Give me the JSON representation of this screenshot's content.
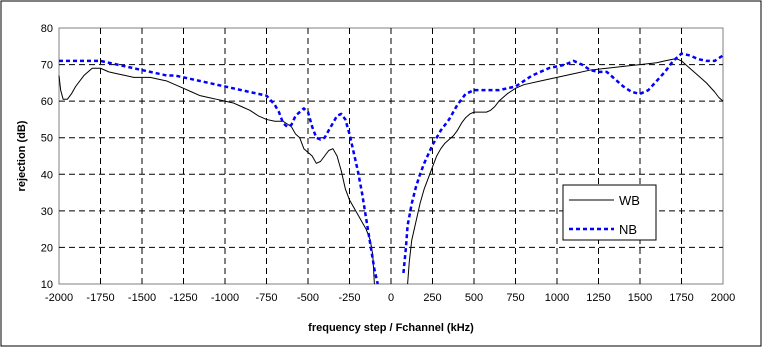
{
  "chart_data": {
    "type": "line",
    "title": "",
    "xlabel": "frequency step / Fchannel (kHz)",
    "ylabel": "rejection (dB)",
    "xlim": [
      -2000,
      2000
    ],
    "ylim": [
      10,
      80
    ],
    "xticks": [
      -2000,
      -1750,
      -1500,
      -1250,
      -1000,
      -750,
      -500,
      -250,
      0,
      250,
      500,
      750,
      1000,
      1250,
      1500,
      1750,
      2000
    ],
    "yticks": [
      10,
      20,
      30,
      40,
      50,
      60,
      70,
      80
    ],
    "grid": true,
    "legend_position": "lower-right",
    "series": [
      {
        "name": "WB",
        "color": "#000000",
        "style": "solid",
        "x": [
          -2000,
          -1990,
          -1975,
          -1950,
          -1925,
          -1900,
          -1850,
          -1800,
          -1750,
          -1700,
          -1650,
          -1600,
          -1550,
          -1500,
          -1450,
          -1400,
          -1350,
          -1300,
          -1250,
          -1200,
          -1150,
          -1100,
          -1050,
          -1000,
          -950,
          -900,
          -850,
          -800,
          -750,
          -700,
          -650,
          -600,
          -575,
          -550,
          -525,
          -500,
          -475,
          -450,
          -425,
          -400,
          -375,
          -350,
          -325,
          -300,
          -275,
          -250,
          -225,
          -200,
          -175,
          -150,
          -125,
          -110,
          -100,
          100,
          110,
          125,
          150,
          175,
          200,
          225,
          250,
          275,
          300,
          325,
          350,
          375,
          400,
          425,
          450,
          475,
          500,
          525,
          550,
          575,
          600,
          625,
          650,
          700,
          750,
          800,
          900,
          1000,
          1100,
          1200,
          1300,
          1400,
          1500,
          1600,
          1650,
          1700,
          1725,
          1750,
          1800,
          1850,
          1900,
          1950,
          1975,
          2000
        ],
        "y": [
          67,
          63,
          60.5,
          60.5,
          62,
          64,
          67,
          69,
          69,
          68,
          67.5,
          67,
          66.5,
          66.5,
          66.5,
          66,
          65.5,
          64.5,
          63.5,
          62.5,
          61.5,
          61,
          60.5,
          60,
          59.5,
          58.5,
          57.5,
          56,
          55,
          54.5,
          54.5,
          53,
          51,
          50,
          47,
          46,
          45,
          43,
          43.5,
          45,
          46.5,
          47,
          45,
          41,
          36,
          33,
          31,
          29,
          27,
          25,
          22,
          18,
          10,
          10,
          16,
          22,
          27,
          32,
          36,
          39,
          42,
          45,
          47,
          48.5,
          49.5,
          50.5,
          52,
          54,
          55.5,
          56.5,
          57,
          57,
          57,
          57,
          57.5,
          58.5,
          60,
          62,
          63.5,
          64.5,
          65.5,
          66.5,
          67.5,
          68.5,
          69,
          69.5,
          70,
          70.5,
          71,
          71.5,
          71.5,
          71,
          69,
          67,
          65,
          62.5,
          61,
          60
        ]
      },
      {
        "name": "NB",
        "color": "#0000ff",
        "style": "dashed",
        "x": [
          -2000,
          -1950,
          -1900,
          -1850,
          -1800,
          -1750,
          -1700,
          -1650,
          -1600,
          -1550,
          -1500,
          -1450,
          -1400,
          -1350,
          -1300,
          -1250,
          -1200,
          -1150,
          -1100,
          -1050,
          -1000,
          -950,
          -900,
          -850,
          -800,
          -750,
          -700,
          -675,
          -650,
          -625,
          -600,
          -575,
          -550,
          -525,
          -500,
          -475,
          -450,
          -425,
          -400,
          -375,
          -350,
          -325,
          -300,
          -275,
          -250,
          -225,
          -200,
          -175,
          -150,
          -125,
          -100,
          -80,
          75,
          90,
          100,
          125,
          150,
          175,
          200,
          250,
          300,
          350,
          400,
          450,
          500,
          550,
          600,
          650,
          700,
          750,
          800,
          850,
          900,
          950,
          1000,
          1050,
          1100,
          1150,
          1200,
          1250,
          1300,
          1350,
          1400,
          1450,
          1500,
          1550,
          1600,
          1650,
          1700,
          1750,
          1800,
          1850,
          1900,
          1950,
          2000
        ],
        "y": [
          71,
          71,
          71,
          71,
          71,
          71,
          70.5,
          70,
          69.5,
          69,
          68.5,
          68,
          67.5,
          67,
          67,
          66.5,
          66,
          65.5,
          65,
          64.5,
          64,
          63.5,
          63,
          62.5,
          62,
          61.5,
          59,
          57,
          54,
          53,
          53.5,
          56,
          57,
          58,
          57,
          53,
          50,
          49.5,
          50,
          52,
          54,
          56,
          56.5,
          55,
          51,
          46,
          41,
          35,
          28,
          21,
          14,
          10,
          13,
          20,
          26,
          32,
          36.5,
          40,
          43,
          48,
          52,
          55,
          59,
          62,
          63,
          63,
          63,
          63,
          63.5,
          64,
          65.5,
          67,
          68,
          69,
          69.5,
          70,
          71,
          70,
          68.5,
          68,
          68,
          66,
          64,
          62.5,
          62,
          63,
          65.5,
          68,
          71,
          73,
          72.5,
          71.5,
          71,
          71,
          72.5
        ]
      }
    ]
  }
}
